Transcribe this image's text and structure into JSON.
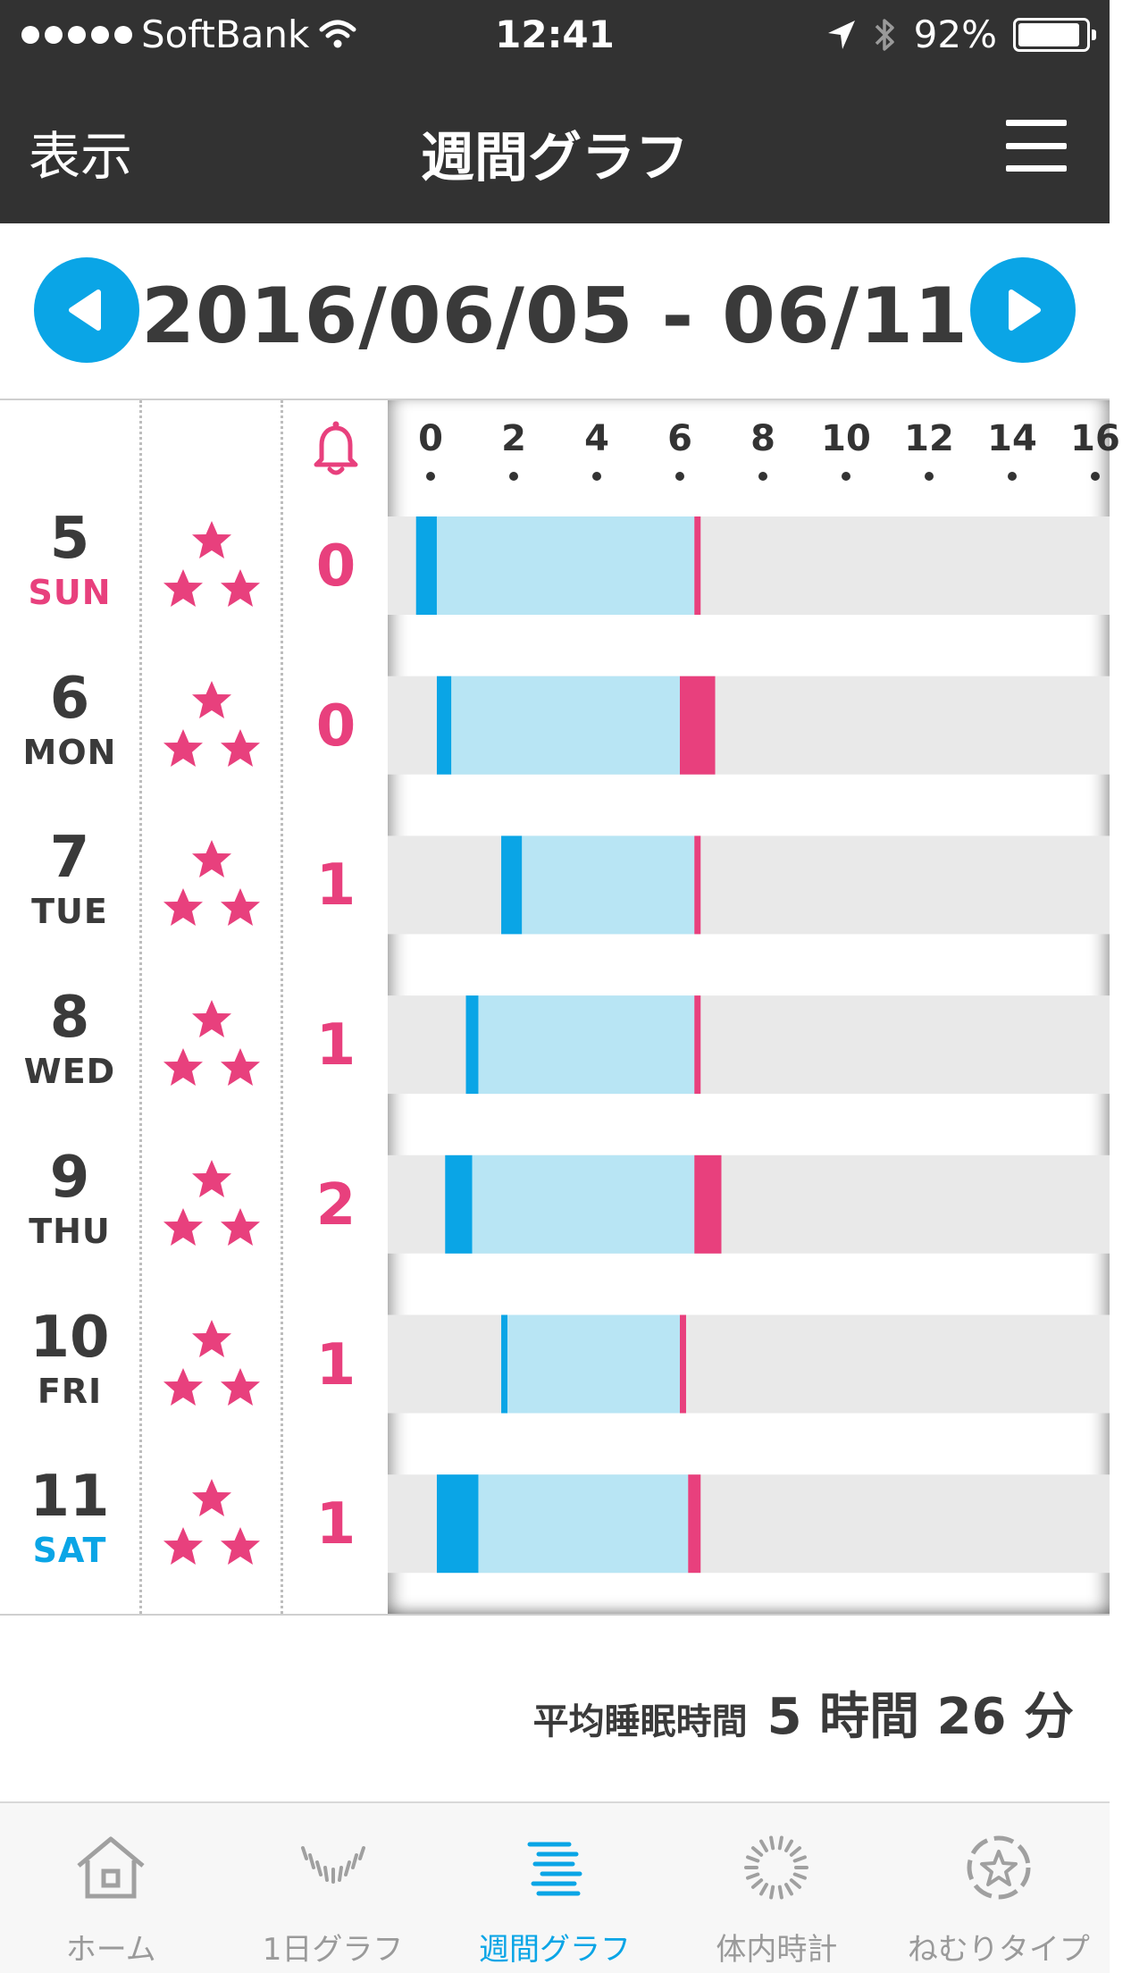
{
  "status_bar": {
    "carrier": "SoftBank",
    "time": "12:41",
    "battery_percent": "92%",
    "battery_level": 0.92
  },
  "nav": {
    "left_label": "表示",
    "title": "週間グラフ"
  },
  "week": {
    "range": "2016/06/05 - 06/11"
  },
  "axis": {
    "ticks": [
      "0",
      "2",
      "4",
      "6",
      "8",
      "10",
      "12",
      "14",
      "16"
    ]
  },
  "days": [
    {
      "num": "5",
      "name": "SUN",
      "stars": 3,
      "alarms": "0"
    },
    {
      "num": "6",
      "name": "MON",
      "stars": 3,
      "alarms": "0"
    },
    {
      "num": "7",
      "name": "TUE",
      "stars": 3,
      "alarms": "1"
    },
    {
      "num": "8",
      "name": "WED",
      "stars": 3,
      "alarms": "1"
    },
    {
      "num": "9",
      "name": "THU",
      "stars": 3,
      "alarms": "2"
    },
    {
      "num": "10",
      "name": "FRI",
      "stars": 3,
      "alarms": "1"
    },
    {
      "num": "11",
      "name": "SAT",
      "stars": 3,
      "alarms": "1"
    }
  ],
  "chart_data": {
    "type": "bar",
    "orientation": "horizontal",
    "x_ticks": [
      0,
      2,
      4,
      6,
      8,
      10,
      12,
      14,
      16
    ],
    "xlim": [
      -1,
      16.2
    ],
    "categories": [
      "5 SUN",
      "6 MON",
      "7 TUE",
      "8 WED",
      "9 THU",
      "10 FRI",
      "11 SAT"
    ],
    "series": [
      {
        "color": "#0aa5e6",
        "segments": [
          [
            -0.35,
            0.15
          ],
          [
            0.15,
            0.5
          ],
          [
            1.7,
            2.2
          ],
          [
            0.85,
            1.15
          ],
          [
            0.35,
            1.0
          ],
          [
            1.7,
            1.85
          ],
          [
            0.15,
            1.15
          ]
        ]
      },
      {
        "color": "#b8e5f4",
        "segments": [
          [
            0.15,
            6.35
          ],
          [
            0.5,
            6.0
          ],
          [
            2.2,
            6.35
          ],
          [
            1.15,
            6.35
          ],
          [
            1.0,
            6.35
          ],
          [
            1.85,
            6.0
          ],
          [
            1.15,
            6.2
          ]
        ]
      },
      {
        "color": "#e8407d",
        "segments": [
          [
            6.35,
            6.5
          ],
          [
            6.0,
            6.85
          ],
          [
            6.35,
            6.5
          ],
          [
            6.35,
            6.5
          ],
          [
            6.35,
            7.0
          ],
          [
            6.0,
            6.15
          ],
          [
            6.2,
            6.5
          ]
        ]
      }
    ],
    "background_color": "#e9e9e9"
  },
  "summary": {
    "label": "平均睡眠時間",
    "value": "5 時間 26 分"
  },
  "tabs": [
    {
      "label": "ホーム",
      "icon": "home-icon",
      "active": false
    },
    {
      "label": "1日グラフ",
      "icon": "day-graph-icon",
      "active": false
    },
    {
      "label": "週間グラフ",
      "icon": "week-graph-icon",
      "active": true
    },
    {
      "label": "体内時計",
      "icon": "body-clock-icon",
      "active": false
    },
    {
      "label": "ねむりタイプ",
      "icon": "sleep-type-icon",
      "active": false
    }
  ],
  "colors": {
    "accent_blue": "#0aa5e6",
    "accent_pink": "#e8407d",
    "header_dark": "#323232"
  }
}
